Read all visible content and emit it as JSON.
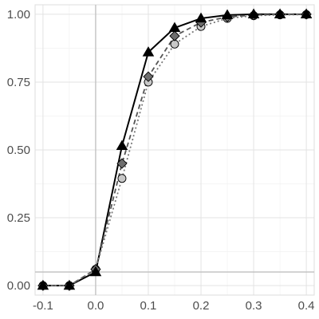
{
  "chart_data": {
    "type": "line",
    "title": "",
    "xlabel": "",
    "ylabel": "",
    "xlim": [
      -0.115,
      0.415
    ],
    "ylim": [
      -0.035,
      1.035
    ],
    "grid": true,
    "legend": "none",
    "x_ticks": [
      {
        "value": -0.1,
        "label": "-0.1"
      },
      {
        "value": 0.0,
        "label": "0.0"
      },
      {
        "value": 0.1,
        "label": "0.1"
      },
      {
        "value": 0.2,
        "label": "0.2"
      },
      {
        "value": 0.3,
        "label": "0.3"
      },
      {
        "value": 0.4,
        "label": "0.4"
      }
    ],
    "y_ticks": [
      {
        "value": 0.0,
        "label": "0.00"
      },
      {
        "value": 0.25,
        "label": "0.25"
      },
      {
        "value": 0.5,
        "label": "0.50"
      },
      {
        "value": 0.75,
        "label": "0.75"
      },
      {
        "value": 1.0,
        "label": "1.00"
      }
    ],
    "reference_lines": {
      "vertical_x": 0.0,
      "horizontal_y": 0.05,
      "color": "#bfbfbf"
    },
    "x": [
      -0.1,
      -0.05,
      0.0,
      0.05,
      0.1,
      0.15,
      0.2,
      0.25,
      0.3,
      0.35,
      0.4
    ],
    "series": [
      {
        "marker": "triangle",
        "line_style": "solid",
        "line_color": "#000000",
        "marker_fill": "#000000",
        "values": [
          0.0,
          0.0,
          0.05,
          0.515,
          0.86,
          0.95,
          0.985,
          0.997,
          1.0,
          1.0,
          1.0
        ]
      },
      {
        "marker": "diamond",
        "line_style": "dashed",
        "line_color": "#555555",
        "marker_fill": "#6e6e6e",
        "values": [
          0.0,
          0.0,
          0.06,
          0.45,
          0.77,
          0.92,
          0.97,
          0.99,
          0.997,
          1.0,
          1.0
        ]
      },
      {
        "marker": "circle",
        "line_style": "dotted",
        "line_color": "#777777",
        "marker_fill": "#c8c8c8",
        "values": [
          0.0,
          0.0,
          0.06,
          0.395,
          0.75,
          0.89,
          0.955,
          0.985,
          0.995,
          0.998,
          0.999
        ]
      }
    ]
  }
}
